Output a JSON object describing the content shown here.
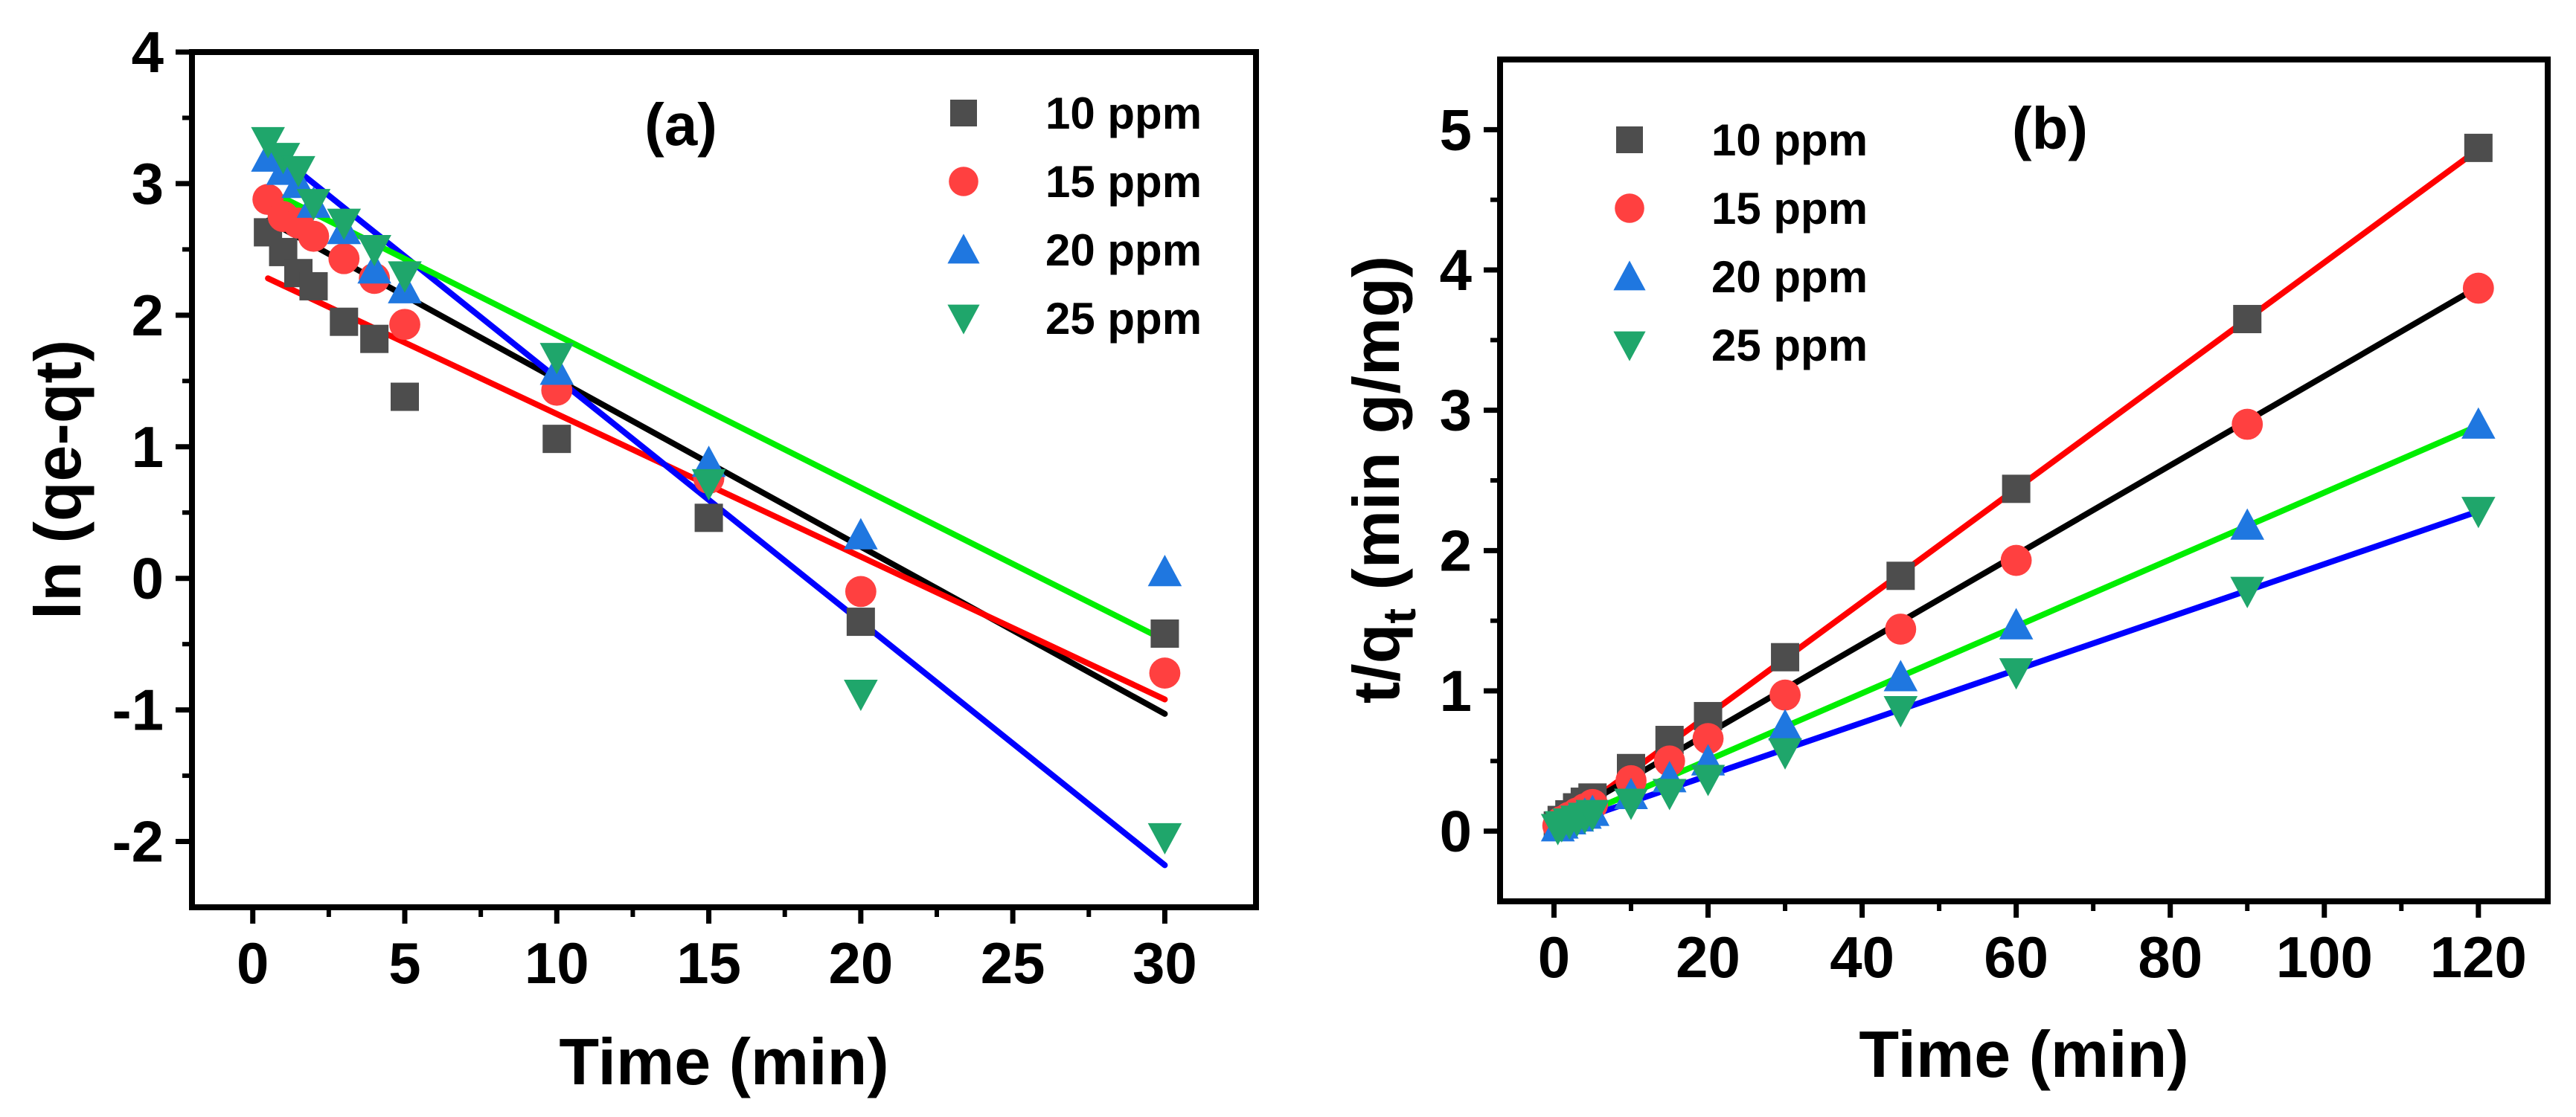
{
  "chart_data": [
    {
      "panel": "(a)",
      "type": "scatter",
      "xlabel": "Time (min)",
      "ylabel": "ln (qe-qt)",
      "xlim": [
        -2,
        33
      ],
      "ylim": [
        -2.5,
        4
      ],
      "xticks": [
        "0",
        "5",
        "10",
        "15",
        "20",
        "25",
        "30"
      ],
      "yticks": [
        "-2",
        "-1",
        "0",
        "1",
        "2",
        "3",
        "4"
      ],
      "legend_position": "top-right",
      "series": [
        {
          "name": "10 ppm",
          "marker": "square",
          "color": "#4d4d4d",
          "fit_color": "#000000",
          "x": [
            0.5,
            1,
            1.5,
            2,
            3,
            4,
            5,
            10,
            15,
            20,
            30
          ],
          "y": [
            2.63,
            2.48,
            2.32,
            2.22,
            1.95,
            1.82,
            1.38,
            1.06,
            0.46,
            -0.33,
            -0.42
          ],
          "fit": {
            "x": [
              0.5,
              30
            ],
            "y": [
              2.72,
              -1.03
            ]
          }
        },
        {
          "name": "15 ppm",
          "marker": "circle",
          "color": "#ff4040",
          "fit_color": "#ff0000",
          "x": [
            0.5,
            1,
            1.5,
            2,
            3,
            4,
            5,
            10,
            15,
            20,
            30
          ],
          "y": [
            2.88,
            2.75,
            2.7,
            2.6,
            2.43,
            2.28,
            1.93,
            1.43,
            0.76,
            -0.1,
            -0.72
          ],
          "fit": {
            "x": [
              0.5,
              30
            ],
            "y": [
              2.28,
              -0.92
            ]
          }
        },
        {
          "name": "20 ppm",
          "marker": "triangle-up",
          "color": "#1f77e0",
          "fit_color": "#0000ff",
          "x": [
            0.5,
            1,
            1.5,
            2,
            3,
            4,
            5,
            10,
            15,
            20,
            30
          ],
          "y": [
            3.2,
            3.1,
            3.0,
            2.85,
            2.65,
            2.35,
            2.2,
            1.58,
            0.88,
            0.33,
            0.05
          ],
          "fit": {
            "x": [
              0.5,
              30
            ],
            "y": [
              3.28,
              -2.18
            ]
          }
        },
        {
          "name": "25 ppm",
          "marker": "triangle-down",
          "color": "#1fa66b",
          "fit_color": "#00ee00",
          "x": [
            0.5,
            1,
            1.5,
            2,
            3,
            4,
            5,
            10,
            15,
            20,
            30
          ],
          "y": [
            3.32,
            3.2,
            3.1,
            2.85,
            2.7,
            2.5,
            2.3,
            1.68,
            0.72,
            -0.88,
            -1.97
          ],
          "fit": {
            "x": [
              0.5,
              30
            ],
            "y": [
              2.95,
              -0.47
            ]
          }
        }
      ]
    },
    {
      "panel": "(b)",
      "type": "scatter",
      "xlabel": "Time (min)",
      "ylabel": "t/qt (min g/mg)",
      "ylabel_main": "t/q",
      "ylabel_sub": "t",
      "ylabel_rest": " (min g/mg)",
      "xlim": [
        -7,
        129
      ],
      "ylim": [
        -0.5,
        5.5
      ],
      "xticks": [
        "0",
        "20",
        "40",
        "60",
        "80",
        "100",
        "120"
      ],
      "yticks": [
        "0",
        "1",
        "2",
        "3",
        "4",
        "5"
      ],
      "legend_position": "top-left",
      "series": [
        {
          "name": "10 ppm",
          "marker": "square",
          "color": "#4d4d4d",
          "fit_color": "#ff0000",
          "x": [
            0.5,
            1,
            2,
            3,
            4,
            5,
            10,
            15,
            20,
            30,
            45,
            60,
            90,
            120
          ],
          "y": [
            0.04,
            0.08,
            0.12,
            0.17,
            0.21,
            0.24,
            0.45,
            0.65,
            0.82,
            1.24,
            1.82,
            2.44,
            3.65,
            4.87
          ],
          "fit": {
            "x": [
              0,
              120
            ],
            "y": [
              0.02,
              4.86
            ]
          }
        },
        {
          "name": "15 ppm",
          "marker": "circle",
          "color": "#ff4040",
          "fit_color": "#000000",
          "x": [
            0.5,
            1,
            2,
            3,
            4,
            5,
            10,
            15,
            20,
            30,
            45,
            60,
            90,
            120
          ],
          "y": [
            0.04,
            0.07,
            0.1,
            0.13,
            0.16,
            0.19,
            0.36,
            0.5,
            0.66,
            0.97,
            1.44,
            1.93,
            2.9,
            3.87
          ],
          "fit": {
            "x": [
              0,
              120
            ],
            "y": [
              0.06,
              3.88
            ]
          }
        },
        {
          "name": "20 ppm",
          "marker": "triangle-up",
          "color": "#1f77e0",
          "fit_color": "#00ee00",
          "x": [
            0.5,
            1,
            2,
            3,
            4,
            5,
            10,
            15,
            20,
            30,
            45,
            60,
            90,
            120
          ],
          "y": [
            0.03,
            0.05,
            0.08,
            0.1,
            0.12,
            0.14,
            0.26,
            0.38,
            0.5,
            0.75,
            1.1,
            1.47,
            2.18,
            2.9
          ],
          "fit": {
            "x": [
              0,
              120
            ],
            "y": [
              0.03,
              2.89
            ]
          }
        },
        {
          "name": "25 ppm",
          "marker": "triangle-down",
          "color": "#1fa66b",
          "fit_color": "#0000ff",
          "x": [
            0.5,
            1,
            2,
            3,
            4,
            5,
            10,
            15,
            20,
            30,
            45,
            60,
            90,
            120
          ],
          "y": [
            0.02,
            0.04,
            0.06,
            0.08,
            0.1,
            0.12,
            0.2,
            0.27,
            0.37,
            0.56,
            0.86,
            1.13,
            1.71,
            2.28
          ],
          "fit": {
            "x": [
              0,
              120
            ],
            "y": [
              0.02,
              2.28
            ]
          }
        }
      ]
    }
  ]
}
